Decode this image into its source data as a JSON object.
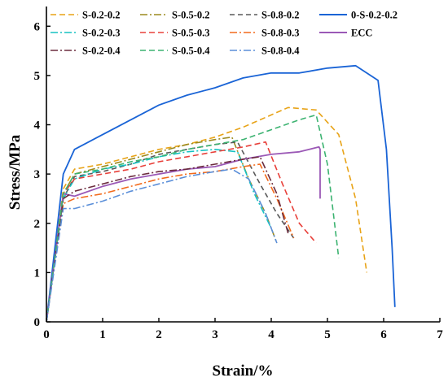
{
  "chart_data": {
    "type": "line",
    "xlabel": "Strain/%",
    "ylabel": "Stress/MPa",
    "xlim": [
      0,
      7
    ],
    "ylim": [
      0,
      6.4
    ],
    "xticks": [
      "0",
      "1",
      "2",
      "3",
      "4",
      "5",
      "6",
      "7"
    ],
    "yticks": [
      "0",
      "1",
      "2",
      "3",
      "4",
      "5",
      "6"
    ],
    "grid": false,
    "legend_position": "top",
    "series": [
      {
        "name": "S-0.2-0.2",
        "color": "#E8A317",
        "dash": "7,4",
        "x": [
          0,
          0.3,
          0.5,
          1.0,
          1.5,
          2.0,
          2.5,
          3.0,
          3.5,
          4.0,
          4.3,
          4.8,
          5.2,
          5.5,
          5.7
        ],
        "y": [
          0,
          2.7,
          3.1,
          3.2,
          3.35,
          3.5,
          3.6,
          3.75,
          3.95,
          4.2,
          4.35,
          4.3,
          3.8,
          2.5,
          1.0
        ]
      },
      {
        "name": "S-0.5-0.2",
        "color": "#9B8A1E",
        "dash": "9,3,2,3",
        "x": [
          0,
          0.3,
          0.5,
          1.0,
          1.5,
          2.0,
          2.5,
          3.0,
          3.3,
          3.6,
          3.9,
          4.1
        ],
        "y": [
          0,
          2.6,
          3.0,
          3.15,
          3.3,
          3.45,
          3.6,
          3.7,
          3.75,
          2.9,
          2.2,
          1.6
        ]
      },
      {
        "name": "S-0.8-0.2",
        "color": "#595959",
        "dash": "6,4",
        "x": [
          0,
          0.3,
          0.5,
          1.0,
          1.5,
          2.0,
          2.5,
          3.0,
          3.4,
          3.8,
          4.1,
          4.4
        ],
        "y": [
          0,
          2.5,
          2.95,
          3.05,
          3.2,
          3.4,
          3.5,
          3.6,
          3.65,
          2.8,
          2.2,
          1.7
        ]
      },
      {
        "name": "0-S-0.2-0.2",
        "color": "#1A64D6",
        "dash": "",
        "x": [
          0,
          0.3,
          0.5,
          1.0,
          1.5,
          2.0,
          2.5,
          3.0,
          3.5,
          4.0,
          4.5,
          5.0,
          5.5,
          5.9,
          6.05,
          6.15,
          6.2
        ],
        "y": [
          0,
          3.0,
          3.5,
          3.8,
          4.1,
          4.4,
          4.6,
          4.75,
          4.95,
          5.05,
          5.05,
          5.15,
          5.2,
          4.9,
          3.5,
          1.5,
          0.3
        ]
      },
      {
        "name": "S-0.2-0.3",
        "color": "#17C2C2",
        "dash": "9,3,2,3",
        "x": [
          0,
          0.3,
          0.5,
          1.0,
          1.5,
          2.0,
          2.5,
          3.0,
          3.4,
          3.7,
          4.0
        ],
        "y": [
          0,
          2.5,
          2.9,
          3.1,
          3.2,
          3.35,
          3.45,
          3.5,
          3.45,
          2.6,
          1.9
        ]
      },
      {
        "name": "S-0.5-0.3",
        "color": "#E8403A",
        "dash": "7,4",
        "x": [
          0,
          0.3,
          0.5,
          1.0,
          1.5,
          2.0,
          2.5,
          3.0,
          3.5,
          3.9,
          4.2,
          4.5,
          4.8
        ],
        "y": [
          0,
          2.6,
          2.9,
          3.0,
          3.1,
          3.25,
          3.35,
          3.45,
          3.55,
          3.65,
          2.8,
          2.0,
          1.6
        ]
      },
      {
        "name": "S-0.8-0.3",
        "color": "#F26A1B",
        "dash": "9,3,2,3",
        "x": [
          0,
          0.3,
          0.5,
          1.0,
          1.5,
          2.0,
          2.5,
          3.0,
          3.5,
          3.8,
          4.1,
          4.4
        ],
        "y": [
          0,
          2.4,
          2.5,
          2.6,
          2.75,
          2.9,
          3.0,
          3.05,
          3.15,
          3.2,
          2.5,
          1.7
        ]
      },
      {
        "name": "ECC",
        "color": "#9B59B6",
        "dash": "",
        "x": [
          0,
          0.3,
          0.5,
          1.0,
          1.5,
          2.0,
          2.5,
          3.0,
          3.5,
          4.0,
          4.5,
          4.85,
          4.87,
          4.87
        ],
        "y": [
          0,
          2.6,
          2.55,
          2.75,
          2.9,
          3.0,
          3.1,
          3.15,
          3.3,
          3.4,
          3.45,
          3.55,
          3.5,
          2.5
        ]
      },
      {
        "name": "S-0.2-0.4",
        "color": "#6B2C3E",
        "dash": "9,3,2,3",
        "x": [
          0,
          0.3,
          0.5,
          1.0,
          1.5,
          2.0,
          2.5,
          3.0,
          3.5,
          3.8,
          4.1,
          4.3
        ],
        "y": [
          0,
          2.5,
          2.65,
          2.8,
          2.95,
          3.05,
          3.1,
          3.2,
          3.3,
          3.35,
          2.6,
          1.8
        ]
      },
      {
        "name": "S-0.5-0.4",
        "color": "#3CB371",
        "dash": "7,4",
        "x": [
          0,
          0.3,
          0.5,
          1.0,
          1.5,
          2.0,
          2.5,
          3.0,
          3.5,
          4.0,
          4.5,
          4.8,
          5.0,
          5.2
        ],
        "y": [
          0,
          2.6,
          3.0,
          3.1,
          3.25,
          3.35,
          3.5,
          3.6,
          3.7,
          3.9,
          4.1,
          4.2,
          3.2,
          1.3
        ]
      },
      {
        "name": "S-0.8-0.4",
        "color": "#5B8FD9",
        "dash": "9,3,2,3",
        "x": [
          0,
          0.3,
          0.5,
          1.0,
          1.5,
          2.0,
          2.5,
          3.0,
          3.3,
          3.6,
          3.9,
          4.1
        ],
        "y": [
          0,
          2.3,
          2.3,
          2.45,
          2.65,
          2.8,
          2.95,
          3.05,
          3.1,
          2.9,
          2.2,
          1.6
        ]
      }
    ]
  }
}
